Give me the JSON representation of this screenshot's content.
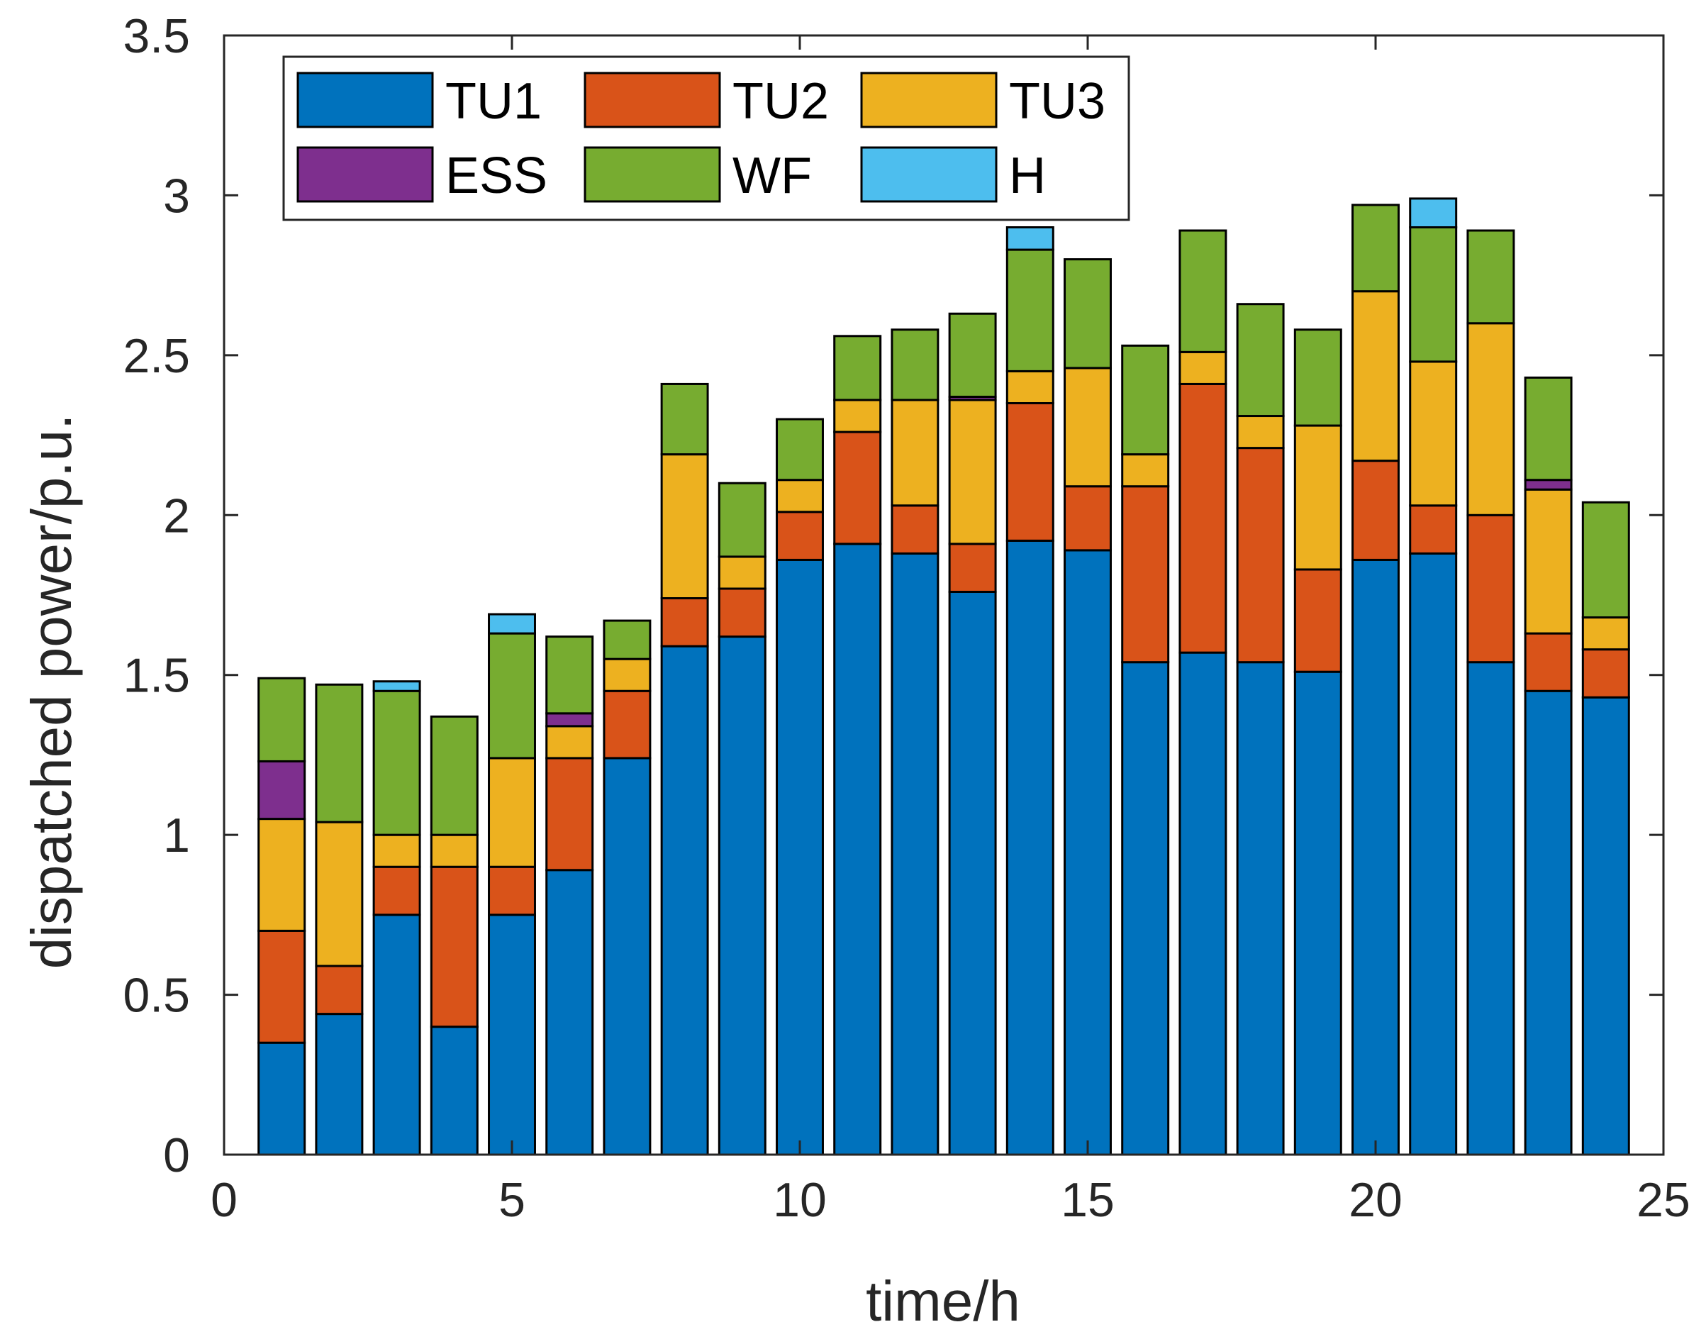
{
  "chart_data": {
    "type": "bar",
    "stacked": true,
    "xlabel": "time/h",
    "ylabel": "dispatched power/p.u.",
    "xlim": [
      0,
      25
    ],
    "ylim": [
      0,
      3.5
    ],
    "xticks": [
      0,
      5,
      10,
      15,
      20,
      25
    ],
    "yticks": [
      0,
      0.5,
      1,
      1.5,
      2,
      2.5,
      3,
      3.5
    ],
    "xtick_labels": [
      "0",
      "5",
      "10",
      "15",
      "20",
      "25"
    ],
    "ytick_labels": [
      "0",
      "0.5",
      "1",
      "1.5",
      "2",
      "2.5",
      "3",
      "3.5"
    ],
    "legend_position": "top-left",
    "x": [
      1,
      2,
      3,
      4,
      5,
      6,
      7,
      8,
      9,
      10,
      11,
      12,
      13,
      14,
      15,
      16,
      17,
      18,
      19,
      20,
      21,
      22,
      23,
      24
    ],
    "series": [
      {
        "name": "TU1",
        "color": "#0072BD",
        "values": [
          0.35,
          0.44,
          0.75,
          0.4,
          0.75,
          0.89,
          1.24,
          1.59,
          1.62,
          1.86,
          1.91,
          1.88,
          1.76,
          1.92,
          1.89,
          1.54,
          1.57,
          1.54,
          1.51,
          1.86,
          1.88,
          1.54,
          1.45,
          1.43
        ]
      },
      {
        "name": "TU2",
        "color": "#D95319",
        "values": [
          0.35,
          0.15,
          0.15,
          0.5,
          0.15,
          0.35,
          0.21,
          0.15,
          0.15,
          0.15,
          0.35,
          0.15,
          0.15,
          0.43,
          0.2,
          0.55,
          0.84,
          0.67,
          0.32,
          0.31,
          0.15,
          0.46,
          0.18,
          0.15
        ]
      },
      {
        "name": "TU3",
        "color": "#EDB120",
        "values": [
          0.35,
          0.45,
          0.1,
          0.1,
          0.34,
          0.1,
          0.1,
          0.45,
          0.1,
          0.1,
          0.1,
          0.33,
          0.45,
          0.1,
          0.37,
          0.1,
          0.1,
          0.1,
          0.45,
          0.53,
          0.45,
          0.6,
          0.45,
          0.1
        ]
      },
      {
        "name": "ESS",
        "color": "#7E2F8E",
        "values": [
          0.18,
          0.0,
          0.0,
          0.0,
          0.0,
          0.04,
          0.0,
          0.0,
          0.0,
          0.0,
          0.0,
          0.0,
          0.01,
          0.0,
          0.0,
          0.0,
          0.0,
          0.0,
          0.0,
          0.0,
          0.0,
          0.0,
          0.03,
          0.0
        ]
      },
      {
        "name": "WF",
        "color": "#77AC30",
        "values": [
          0.26,
          0.43,
          0.45,
          0.37,
          0.39,
          0.24,
          0.12,
          0.22,
          0.23,
          0.19,
          0.2,
          0.22,
          0.26,
          0.38,
          0.34,
          0.34,
          0.38,
          0.35,
          0.3,
          0.27,
          0.42,
          0.29,
          0.32,
          0.36
        ]
      },
      {
        "name": "H",
        "color": "#4DBEEE",
        "values": [
          0.0,
          0.0,
          0.03,
          0.0,
          0.06,
          0.0,
          0.0,
          0.0,
          0.0,
          0.0,
          0.0,
          0.0,
          0.0,
          0.07,
          0.0,
          0.0,
          0.0,
          0.0,
          0.0,
          0.0,
          0.09,
          0.0,
          0.0,
          0.0
        ]
      }
    ]
  }
}
